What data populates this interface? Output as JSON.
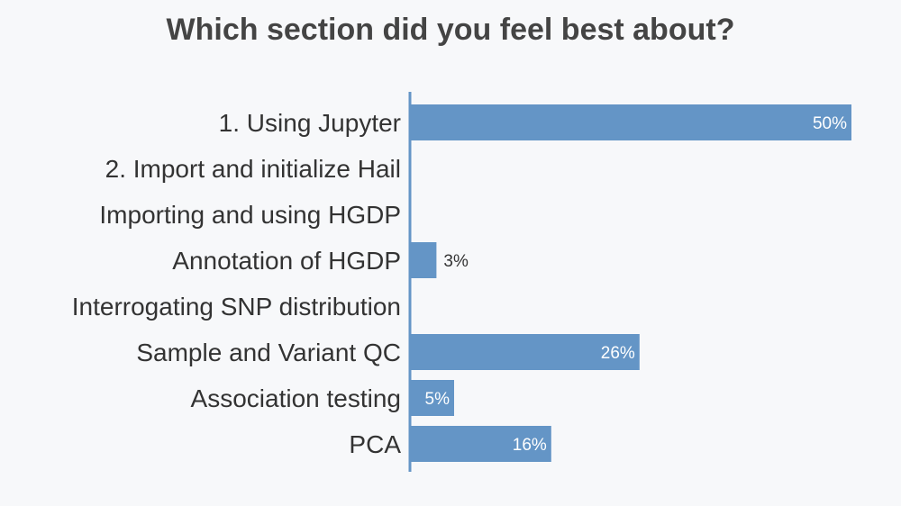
{
  "chart_data": {
    "type": "bar",
    "orientation": "horizontal",
    "title": "Which section did you feel best about?",
    "categories": [
      "1. Using Jupyter",
      "2. Import and initialize Hail",
      "Importing and using HGDP",
      "Annotation of HGDP",
      "Interrogating SNP distribution",
      "Sample and Variant QC",
      "Association testing",
      "PCA"
    ],
    "values": [
      50,
      0,
      0,
      3,
      0,
      26,
      5,
      16
    ],
    "value_labels": [
      "50%",
      "",
      "",
      "3%",
      "",
      "26%",
      "5%",
      "16%"
    ],
    "xlim": [
      0,
      50
    ],
    "grid": false,
    "legend": "none",
    "bar_color": "#6495c6",
    "axis_color": "#6495c6"
  }
}
